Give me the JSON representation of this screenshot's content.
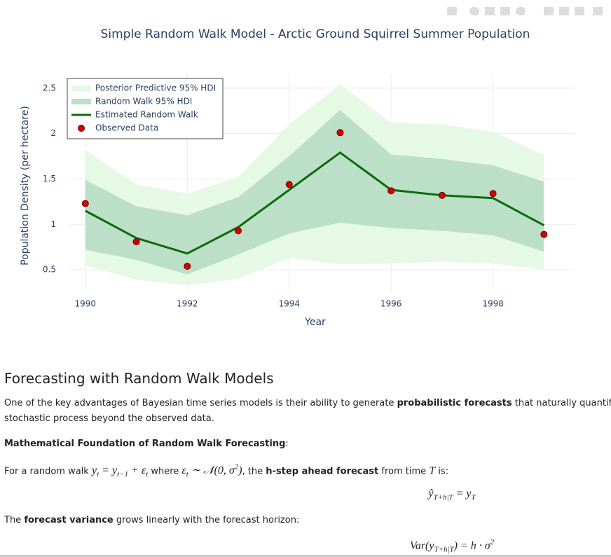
{
  "chart_data": {
    "type": "line",
    "title": "Simple Random Walk Model - Arctic Ground Squirrel Summer Population",
    "x_label": "Year",
    "y_label": "Population Density (per hectare)",
    "x": [
      1990,
      1991,
      1992,
      1993,
      1994,
      1995,
      1996,
      1997,
      1998,
      1999
    ],
    "xlim": [
      1989.7,
      1999.6
    ],
    "xticks": [
      1990,
      1992,
      1994,
      1996,
      1998
    ],
    "ylim": [
      0.27,
      2.66
    ],
    "yticks": [
      0.5,
      1,
      1.5,
      2,
      2.5
    ],
    "grid": true,
    "legend_position": "upper left",
    "series": [
      {
        "name": "Posterior Predictive 95% HDI",
        "color": "#e5f9e5",
        "mode": "band",
        "lower": [
          0.55,
          0.39,
          0.33,
          0.4,
          0.63,
          0.56,
          0.57,
          0.59,
          0.57,
          0.5
        ],
        "upper": [
          1.82,
          1.44,
          1.34,
          1.52,
          2.1,
          2.54,
          2.12,
          2.1,
          2.02,
          1.76
        ]
      },
      {
        "name": "Random Walk 95% HDI",
        "color": "#bcdfc8",
        "mode": "band",
        "lower": [
          0.72,
          0.61,
          0.45,
          0.67,
          0.9,
          1.02,
          0.96,
          0.93,
          0.88,
          0.7
        ],
        "upper": [
          1.49,
          1.2,
          1.1,
          1.3,
          1.75,
          2.26,
          1.77,
          1.72,
          1.65,
          1.47
        ]
      },
      {
        "name": "Estimated Random Walk",
        "color": "#0a6b0a",
        "mode": "lines",
        "values": [
          1.15,
          0.85,
          0.68,
          0.97,
          1.38,
          1.79,
          1.38,
          1.32,
          1.29,
          0.99
        ]
      },
      {
        "name": "Observed Data",
        "color": "#d40000",
        "mode": "markers",
        "values": [
          1.23,
          0.81,
          0.54,
          0.93,
          1.44,
          2.01,
          1.37,
          1.32,
          1.34,
          0.89
        ]
      }
    ]
  },
  "document": {
    "heading": "Forecasting with Random Walk Models",
    "intro": {
      "before": "One of the key advantages of Bayesian time series models is their ability to generate ",
      "bold": "probabilistic forecasts",
      "after": " that naturally quantify uncertainty",
      "line2": "stochastic process beyond the observed data."
    },
    "foundation": {
      "bold": "Mathematical Foundation of Random Walk Forecasting",
      "after": ":"
    },
    "forecast_line": {
      "t1": "For a random walk ",
      "math1": [
        {
          "text": "y",
          "sub": "t"
        },
        {
          "text": " = y",
          "sub": "t−1"
        },
        {
          "text": " + ε",
          "sub": "t"
        }
      ],
      "t2": " where ",
      "math2": [
        {
          "text": "ε",
          "sub": "t"
        },
        {
          "text": " ∼ 𝒩(0, σ",
          "sup": "2"
        },
        {
          "text": ")"
        }
      ],
      "t3": ", the ",
      "bold": "h-step ahead forecast",
      "t4": " from time ",
      "math3": [
        {
          "text": "T"
        }
      ],
      "t5": " is:"
    },
    "equation1": [
      {
        "text": "ŷ",
        "sub": "T+h|T"
      },
      {
        "text": " = y",
        "sub": "T"
      }
    ],
    "variance_line": {
      "t1": "The ",
      "bold": "forecast variance",
      "t2": " grows linearly with the forecast horizon:"
    },
    "equation2": [
      {
        "text": "Var(y",
        "sub": "T+h|T"
      },
      {
        "text": ") = h · σ",
        "sup": "2"
      }
    ]
  }
}
